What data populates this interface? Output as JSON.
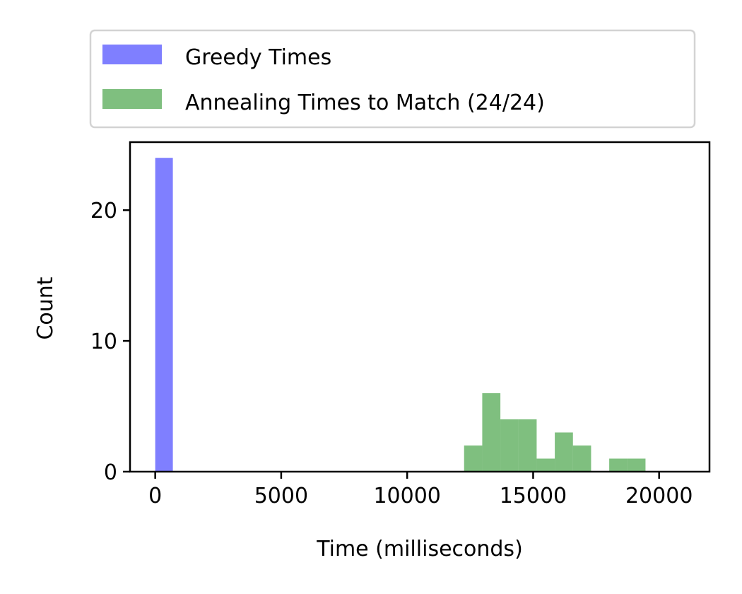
{
  "chart_data": {
    "type": "bar",
    "title": "",
    "xlabel": "Time (milliseconds)",
    "ylabel": "Count",
    "xlim": [
      -1000,
      22000
    ],
    "ylim": [
      0,
      25.2
    ],
    "xticks": [
      0,
      5000,
      10000,
      15000,
      20000
    ],
    "yticks": [
      0,
      10,
      20
    ],
    "grid": false,
    "legend_position": "top",
    "series": [
      {
        "name": "Greedy Times",
        "color": "#0000ff",
        "opacity": 0.5,
        "bins": [
          {
            "x0": 0,
            "x1": 700,
            "count": 24
          }
        ]
      },
      {
        "name": "Annealing Times to Match (24/24)",
        "color": "#008000",
        "opacity": 0.5,
        "bins": [
          {
            "x0": 12260,
            "x1": 12980,
            "count": 2
          },
          {
            "x0": 12980,
            "x1": 13700,
            "count": 6
          },
          {
            "x0": 13700,
            "x1": 14420,
            "count": 4
          },
          {
            "x0": 14420,
            "x1": 15140,
            "count": 4
          },
          {
            "x0": 15140,
            "x1": 15860,
            "count": 1
          },
          {
            "x0": 15860,
            "x1": 16580,
            "count": 3
          },
          {
            "x0": 16580,
            "x1": 17300,
            "count": 2
          },
          {
            "x0": 17300,
            "x1": 18020,
            "count": 0
          },
          {
            "x0": 18020,
            "x1": 18740,
            "count": 1
          },
          {
            "x0": 18740,
            "x1": 19460,
            "count": 1
          }
        ]
      }
    ]
  }
}
